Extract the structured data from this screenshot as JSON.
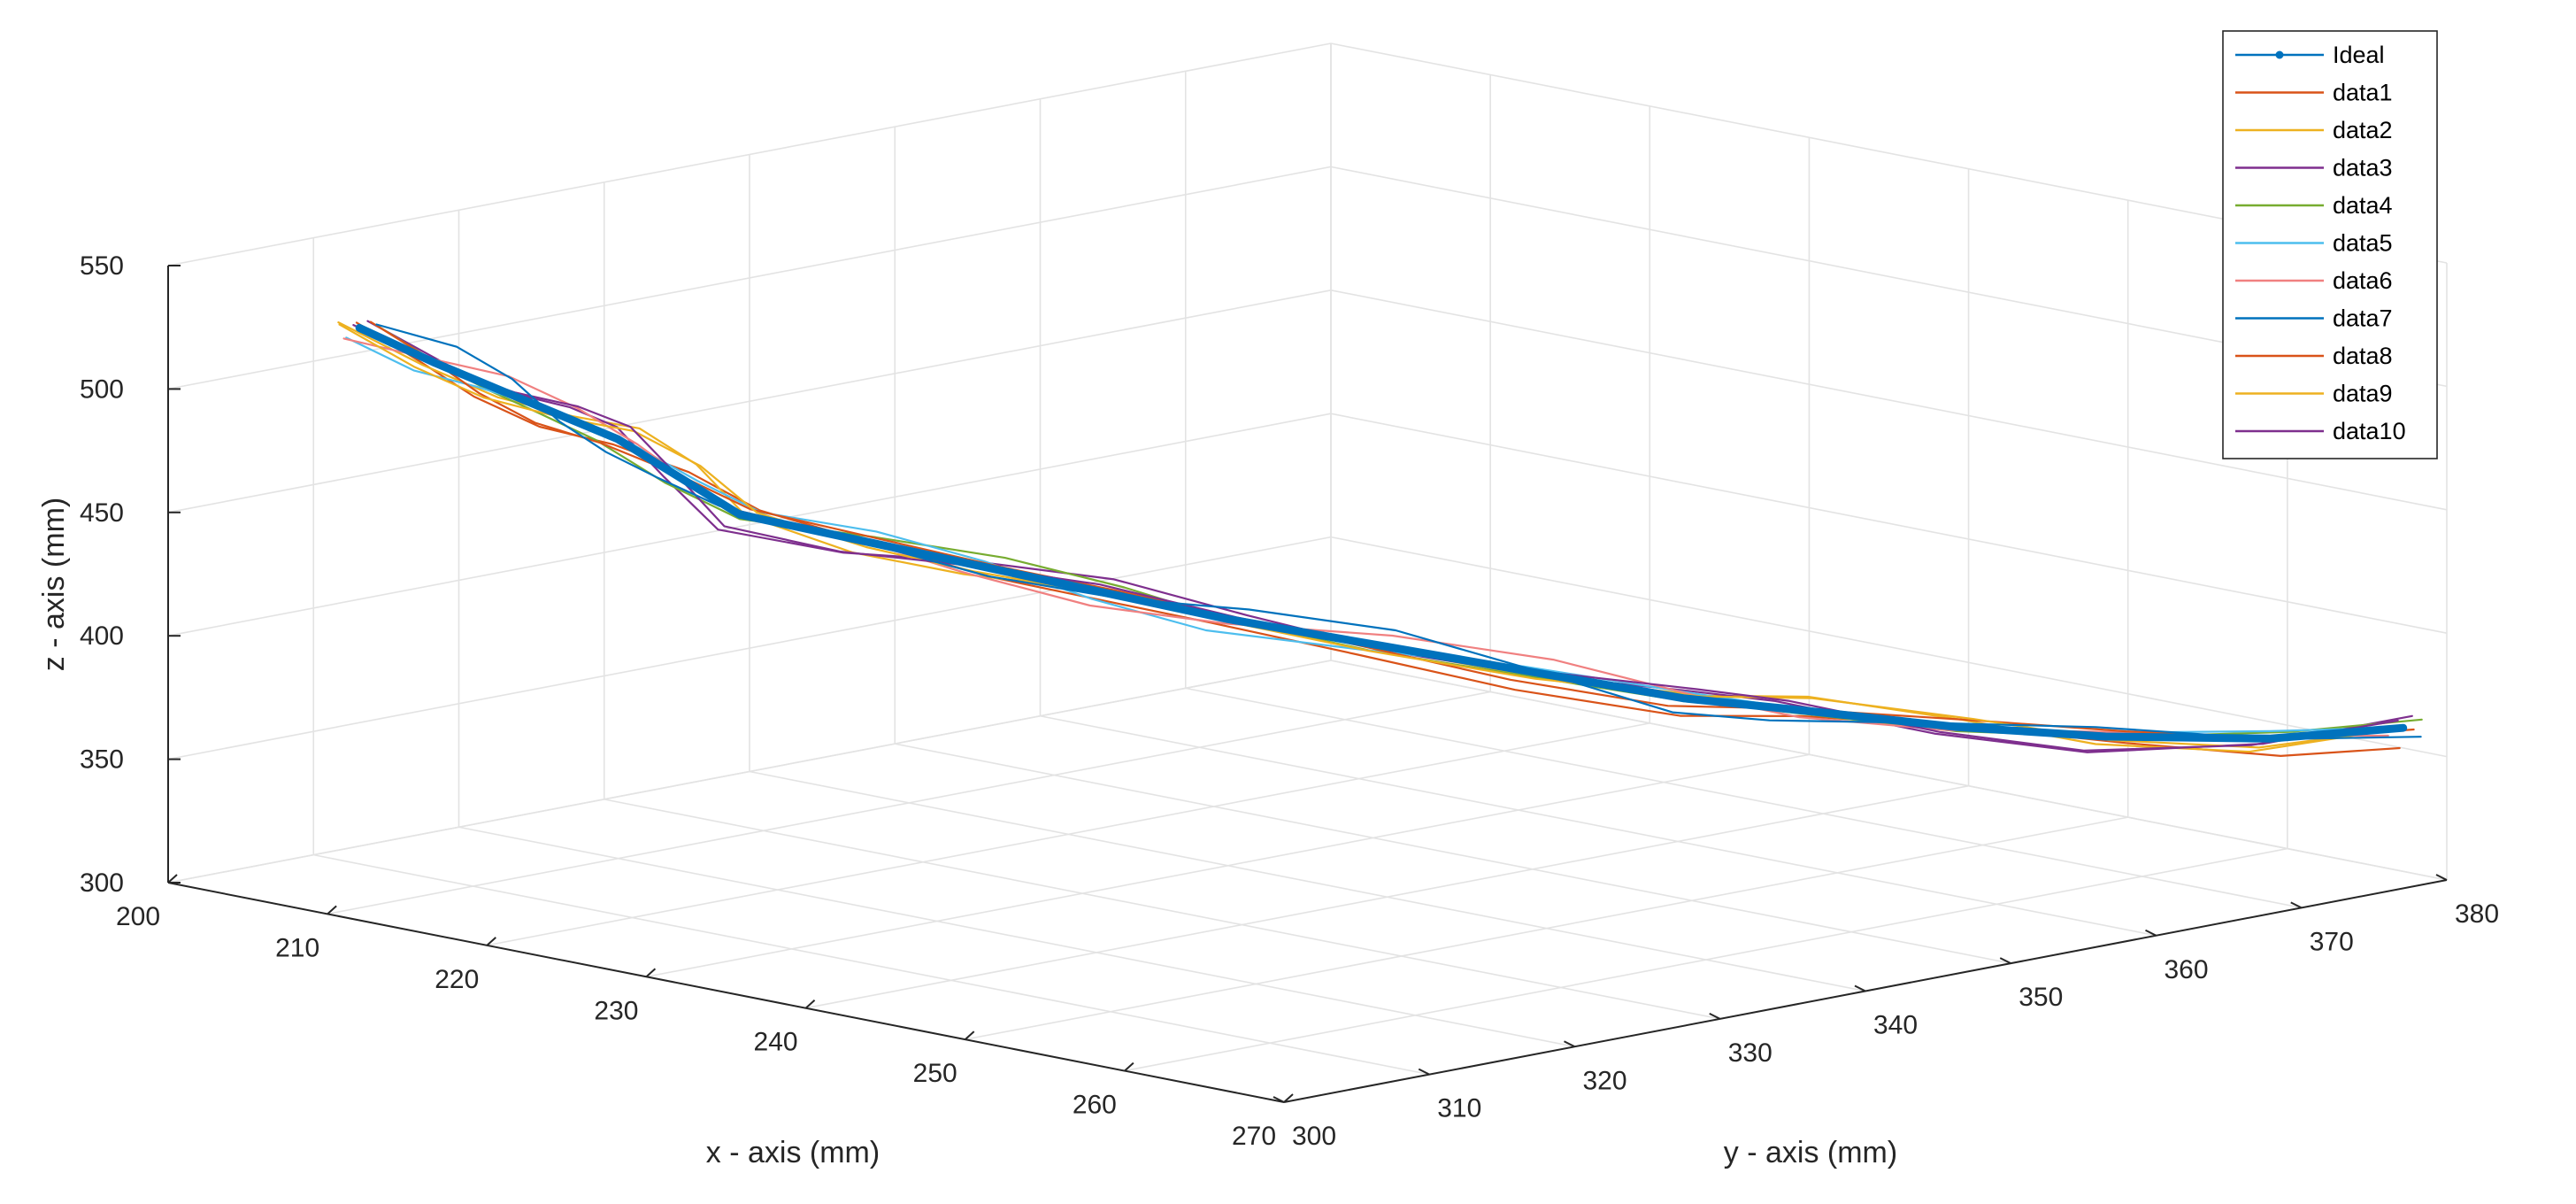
{
  "chart_data": {
    "type": "line",
    "projection": "3d",
    "xlabel": "x - axis (mm)",
    "ylabel": "y - axis (mm)",
    "zlabel": "z - axis (mm)",
    "xlim": [
      200,
      270
    ],
    "ylim": [
      300,
      380
    ],
    "zlim": [
      300,
      550
    ],
    "xticks": [
      200,
      210,
      220,
      230,
      240,
      250,
      260,
      270
    ],
    "yticks": [
      300,
      310,
      320,
      330,
      340,
      350,
      360,
      370,
      380
    ],
    "zticks": [
      300,
      350,
      400,
      450,
      500,
      550
    ],
    "grid": true,
    "legend_position": "top-right",
    "series": [
      {
        "name": "Ideal",
        "color": "#0072BD",
        "marker": "dot"
      },
      {
        "name": "data1",
        "color": "#D95319"
      },
      {
        "name": "data2",
        "color": "#EDB120"
      },
      {
        "name": "data3",
        "color": "#7E2F8E"
      },
      {
        "name": "data4",
        "color": "#77AC30"
      },
      {
        "name": "data5",
        "color": "#4DBEEE"
      },
      {
        "name": "data6",
        "color": "#F08080"
      },
      {
        "name": "data7",
        "color": "#0072BD"
      },
      {
        "name": "data8",
        "color": "#D95319"
      },
      {
        "name": "data9",
        "color": "#EDB120"
      },
      {
        "name": "data10",
        "color": "#7E2F8E"
      }
    ],
    "trajectory": {
      "x": [
        212,
        214,
        216,
        218,
        220,
        222,
        224,
        228,
        232,
        236,
        240,
        245,
        250,
        255,
        258,
        262,
        265,
        268,
        270
      ],
      "y": [
        300,
        303,
        305,
        307,
        309,
        311,
        313,
        317,
        321,
        325,
        329,
        334,
        339,
        344,
        348,
        355,
        362,
        370,
        377
      ],
      "z": [
        540,
        525,
        515,
        505,
        495,
        480,
        465,
        455,
        445,
        435,
        425,
        415,
        405,
        395,
        390,
        380,
        372,
        366,
        365
      ]
    }
  }
}
